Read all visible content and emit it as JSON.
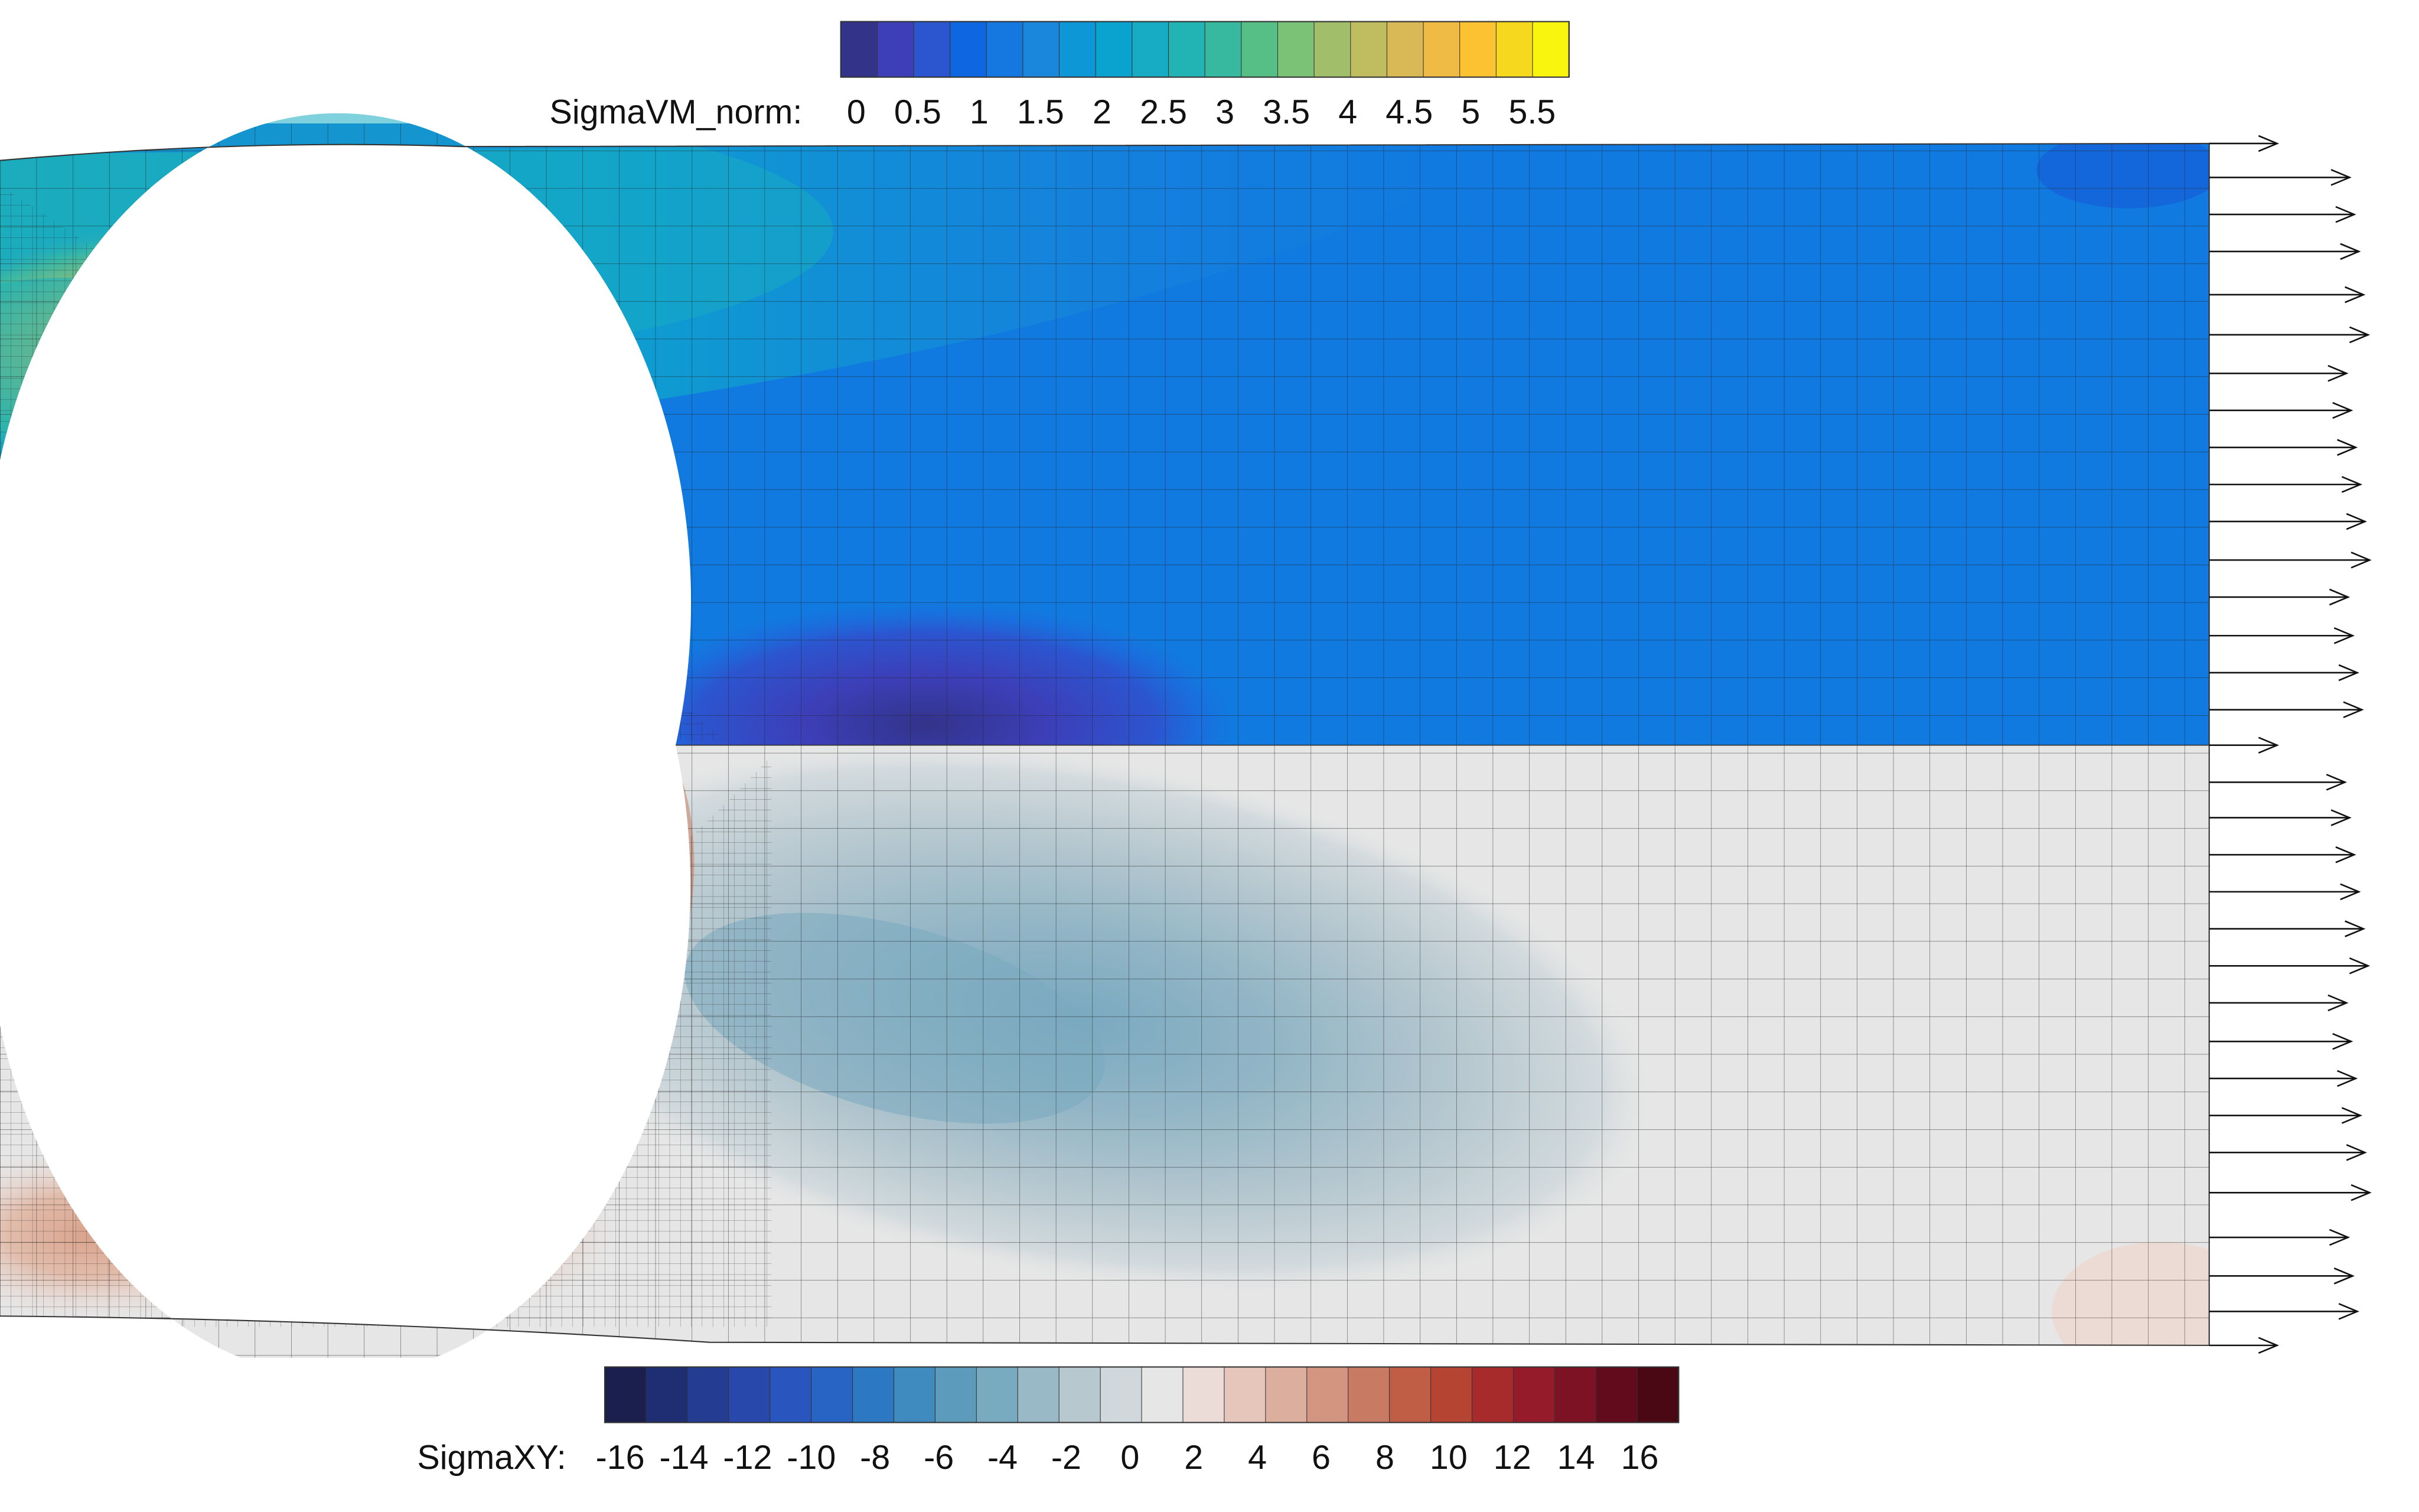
{
  "colorbar_top": {
    "label": "SigmaVM_norm:",
    "ticks": [
      "0",
      "0.5",
      "1",
      "1.5",
      "2",
      "2.5",
      "3",
      "3.5",
      "4",
      "4.5",
      "5",
      "5.5"
    ],
    "colors": [
      "#33338a",
      "#3c3fb8",
      "#2c55d0",
      "#0e66e0",
      "#1577e0",
      "#1a86dc",
      "#0e97d6",
      "#0aa3d0",
      "#17acc3",
      "#22b3b4",
      "#37b9a0",
      "#56bf85",
      "#7bc176",
      "#a1bf6a",
      "#c0bc60",
      "#d9b955",
      "#efbb44",
      "#fdc231",
      "#f6d81f",
      "#f9f50f"
    ]
  },
  "colorbar_bottom": {
    "label": "SigmaXY:",
    "ticks": [
      "-16",
      "-14",
      "-12",
      "-10",
      "-8",
      "-6",
      "-4",
      "-2",
      "0",
      "2",
      "4",
      "6",
      "8",
      "10",
      "12",
      "14",
      "16"
    ],
    "colors": [
      "#1a1f4d",
      "#1f2e73",
      "#243c92",
      "#2948ac",
      "#2955bf",
      "#2864c4",
      "#2d78c3",
      "#3f8abf",
      "#5d9bbd",
      "#79abc0",
      "#9ab9c6",
      "#b7c8cf",
      "#d0d8dc",
      "#e6e6e6",
      "#ecdcd8",
      "#e6c6bb",
      "#dcae9d",
      "#d39480",
      "#c97a62",
      "#bf5e45",
      "#b54433",
      "#a82b2c",
      "#951b2a",
      "#7d1225",
      "#620b1c",
      "#4a0714"
    ]
  },
  "colors": {
    "upper_base": "#117ae0",
    "lower_base": "#e6e6e6",
    "mesh_line": "#222222",
    "arrow": "#111111"
  }
}
